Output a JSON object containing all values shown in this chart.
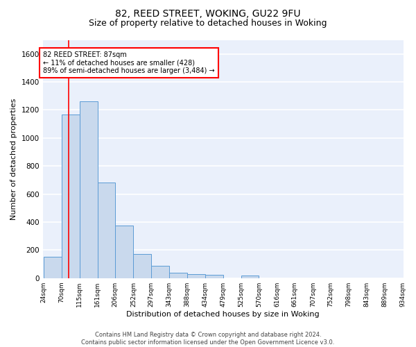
{
  "title1": "82, REED STREET, WOKING, GU22 9FU",
  "title2": "Size of property relative to detached houses in Woking",
  "xlabel": "Distribution of detached houses by size in Woking",
  "ylabel": "Number of detached properties",
  "bar_color": "#c9d9ed",
  "bar_edge_color": "#5b9bd5",
  "vline_color": "red",
  "vline_x_index": 1,
  "annotation_text": "82 REED STREET: 87sqm\n← 11% of detached houses are smaller (428)\n89% of semi-detached houses are larger (3,484) →",
  "bin_edges": [
    24,
    70,
    115,
    161,
    206,
    252,
    297,
    343,
    388,
    434,
    479,
    525,
    570,
    616,
    661,
    707,
    752,
    798,
    843,
    889,
    934
  ],
  "bar_heights": [
    150,
    1170,
    1260,
    680,
    375,
    170,
    90,
    38,
    28,
    22,
    0,
    17,
    0,
    0,
    0,
    0,
    0,
    0,
    0,
    0
  ],
  "xlabels": [
    "24sqm",
    "70sqm",
    "115sqm",
    "161sqm",
    "206sqm",
    "252sqm",
    "297sqm",
    "343sqm",
    "388sqm",
    "434sqm",
    "479sqm",
    "525sqm",
    "570sqm",
    "616sqm",
    "661sqm",
    "707sqm",
    "752sqm",
    "798sqm",
    "843sqm",
    "889sqm",
    "934sqm"
  ],
  "ylim": [
    0,
    1700
  ],
  "yticks": [
    0,
    200,
    400,
    600,
    800,
    1000,
    1200,
    1400,
    1600
  ],
  "background_color": "#eaf0fb",
  "footer_text": "Contains HM Land Registry data © Crown copyright and database right 2024.\nContains public sector information licensed under the Open Government Licence v3.0.",
  "grid_color": "white",
  "annotation_box_color": "white",
  "annotation_box_edge": "red",
  "title1_fontsize": 10,
  "title2_fontsize": 9,
  "ylabel_fontsize": 8,
  "xlabel_fontsize": 8,
  "xtick_fontsize": 6.5,
  "ytick_fontsize": 7.5,
  "annotation_fontsize": 7,
  "footer_fontsize": 6,
  "vline_position": 87
}
